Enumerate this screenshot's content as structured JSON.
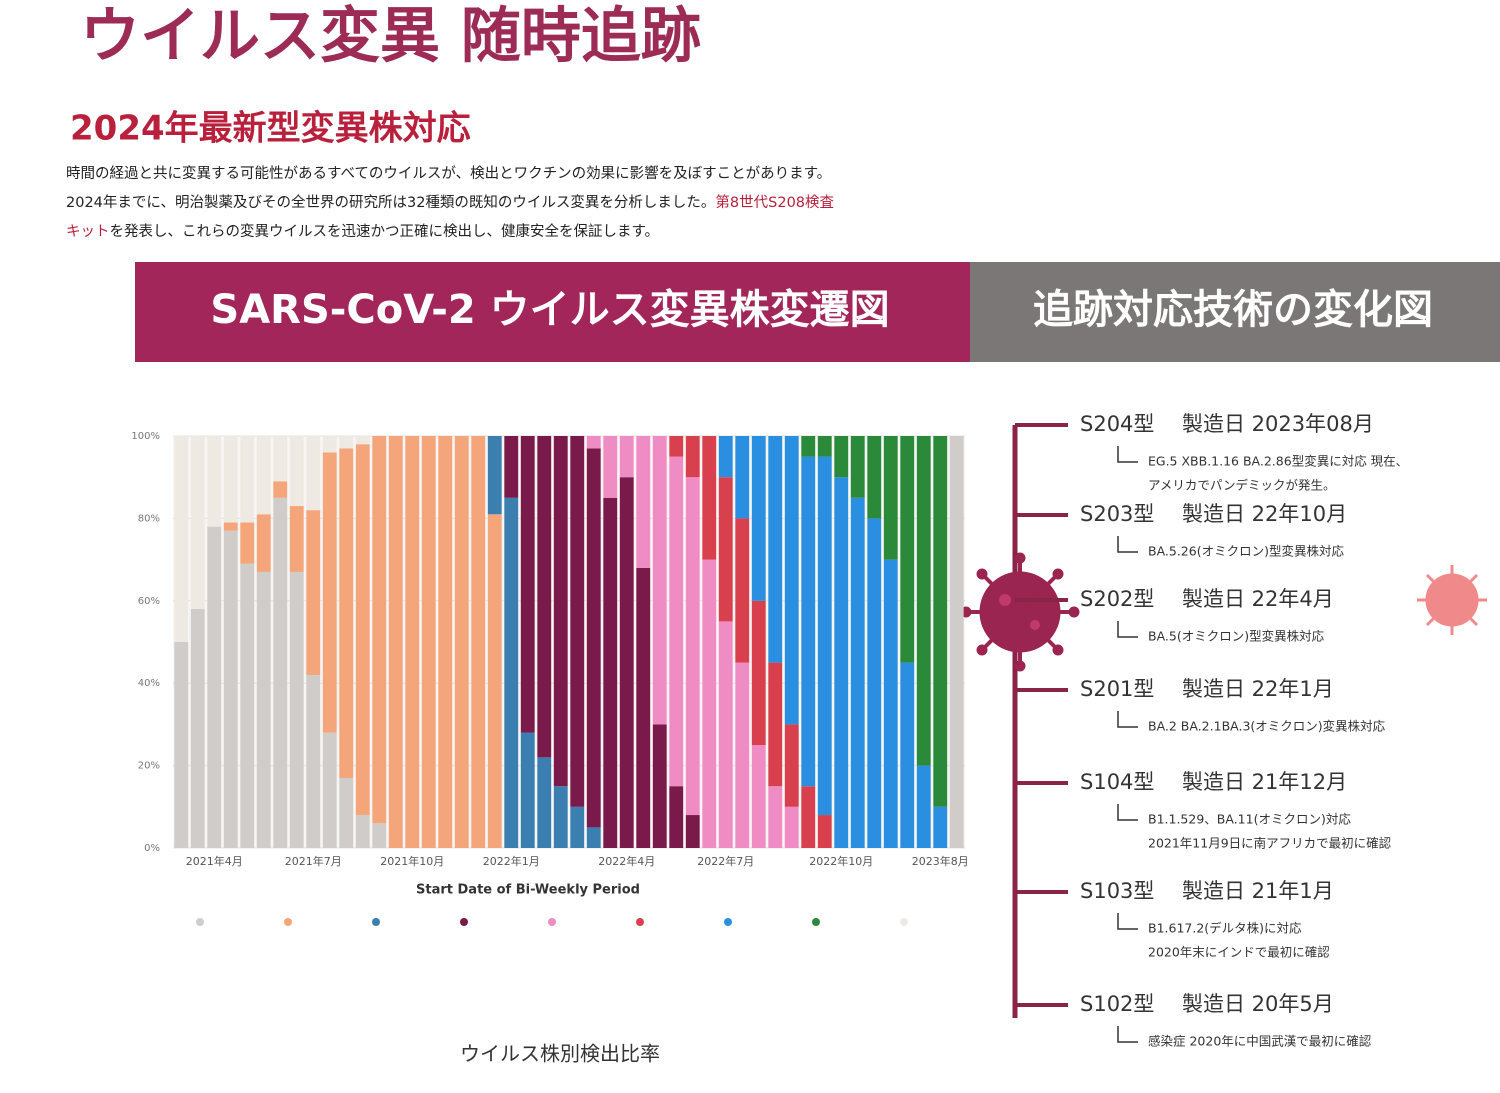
{
  "header": {
    "title": "ウイルス変異 随時追跡",
    "subtitle": "2024年最新型変異株対応",
    "paragraph": [
      [
        {
          "text": "時間の経過と共に変異する可能性があるすべてのウイルスが、検出とワクチンの効果に影響を及ぼすことがあります。",
          "highlight": false
        }
      ],
      [
        {
          "text": "2024年までに、明治製薬及びその全世界の研究所は32種類の既知のウイルス変異を分析しました。",
          "highlight": false
        },
        {
          "text": "第8世代S208検査",
          "highlight": true
        }
      ],
      [
        {
          "text": "キット",
          "highlight": true
        },
        {
          "text": "を発表し、これらの変異ウイルスを迅速かつ正確に検出し、健康安全を保証します。",
          "highlight": false
        }
      ]
    ]
  },
  "banner": {
    "left": "SARS-CoV-2 ウイルス変異株変遷図",
    "right": "追跡対応技術の変化図"
  },
  "chart_data": {
    "type": "bar",
    "stacked": true,
    "x_label": "Start Date of Bi-Weekly Period",
    "caption": "ウイルス株別検出比率",
    "categories": [
      null,
      null,
      "2021年4月",
      null,
      null,
      null,
      null,
      null,
      "2021年7月",
      null,
      null,
      null,
      null,
      null,
      "2021年10月",
      null,
      null,
      null,
      null,
      null,
      "2022年1月",
      null,
      null,
      null,
      null,
      null,
      null,
      "2022年4月",
      null,
      null,
      null,
      null,
      null,
      "2022年7月",
      null,
      null,
      null,
      null,
      null,
      null,
      "2022年10月",
      null,
      null,
      null,
      null,
      null,
      "2023年8月",
      null
    ],
    "ylim": [
      0,
      100
    ],
    "yticks": [
      {
        "value": 0,
        "label": "0%"
      },
      {
        "value": 20,
        "label": "20%"
      },
      {
        "value": 40,
        "label": "40%"
      },
      {
        "value": 60,
        "label": "60%"
      },
      {
        "value": 80,
        "label": "80%"
      },
      {
        "value": 100,
        "label": "100%"
      }
    ],
    "series": [
      {
        "color": "#cfccc9",
        "values": [
          50,
          58,
          78,
          77,
          69,
          67,
          85,
          67,
          42,
          28,
          17,
          8,
          6,
          0,
          0,
          0,
          0,
          0,
          0,
          0,
          0,
          0,
          0,
          0,
          0,
          0,
          0,
          0,
          0,
          0,
          0,
          0,
          0,
          0,
          0,
          0,
          0,
          0,
          0,
          0,
          0,
          0,
          0,
          0,
          0,
          0,
          0,
          100
        ]
      },
      {
        "color": "#f4a57a",
        "values": [
          0,
          0,
          0,
          2,
          10,
          14,
          4,
          16,
          40,
          68,
          80,
          90,
          94,
          100,
          100,
          100,
          100,
          100,
          100,
          81,
          0,
          0,
          0,
          0,
          0,
          0,
          0,
          0,
          0,
          0,
          0,
          0,
          0,
          0,
          0,
          0,
          0,
          0,
          0,
          0,
          0,
          0,
          0,
          0,
          0,
          0,
          0,
          0
        ]
      },
      {
        "color": "#3a7fb0",
        "values": [
          0,
          0,
          0,
          0,
          0,
          0,
          0,
          0,
          0,
          0,
          0,
          0,
          0,
          0,
          0,
          0,
          0,
          0,
          0,
          19,
          85,
          28,
          22,
          15,
          10,
          5,
          0,
          0,
          0,
          0,
          0,
          0,
          0,
          0,
          0,
          0,
          0,
          0,
          0,
          0,
          0,
          0,
          0,
          0,
          0,
          0,
          0,
          0
        ]
      },
      {
        "color": "#7a1a4a",
        "values": [
          0,
          0,
          0,
          0,
          0,
          0,
          0,
          0,
          0,
          0,
          0,
          0,
          0,
          0,
          0,
          0,
          0,
          0,
          0,
          0,
          15,
          72,
          78,
          85,
          90,
          92,
          85,
          90,
          68,
          30,
          15,
          8,
          0,
          0,
          0,
          0,
          0,
          0,
          0,
          0,
          0,
          0,
          0,
          0,
          0,
          0,
          0,
          0
        ]
      },
      {
        "color": "#f08cc4",
        "values": [
          0,
          0,
          0,
          0,
          0,
          0,
          0,
          0,
          0,
          0,
          0,
          0,
          0,
          0,
          0,
          0,
          0,
          0,
          0,
          0,
          0,
          0,
          0,
          0,
          0,
          3,
          15,
          10,
          32,
          70,
          80,
          82,
          70,
          55,
          45,
          25,
          15,
          10,
          0,
          0,
          0,
          0,
          0,
          0,
          0,
          0,
          0,
          0
        ]
      },
      {
        "color": "#d8404e",
        "values": [
          0,
          0,
          0,
          0,
          0,
          0,
          0,
          0,
          0,
          0,
          0,
          0,
          0,
          0,
          0,
          0,
          0,
          0,
          0,
          0,
          0,
          0,
          0,
          0,
          0,
          0,
          0,
          0,
          0,
          0,
          5,
          10,
          30,
          35,
          35,
          35,
          30,
          20,
          15,
          8,
          0,
          0,
          0,
          0,
          0,
          0,
          0,
          0
        ]
      },
      {
        "color": "#2a8fe0",
        "values": [
          0,
          0,
          0,
          0,
          0,
          0,
          0,
          0,
          0,
          0,
          0,
          0,
          0,
          0,
          0,
          0,
          0,
          0,
          0,
          0,
          0,
          0,
          0,
          0,
          0,
          0,
          0,
          0,
          0,
          0,
          0,
          0,
          0,
          10,
          20,
          40,
          55,
          70,
          80,
          87,
          90,
          85,
          80,
          70,
          45,
          20,
          10,
          0
        ]
      },
      {
        "color": "#2a8a3a",
        "values": [
          0,
          0,
          0,
          0,
          0,
          0,
          0,
          0,
          0,
          0,
          0,
          0,
          0,
          0,
          0,
          0,
          0,
          0,
          0,
          0,
          0,
          0,
          0,
          0,
          0,
          0,
          0,
          0,
          0,
          0,
          0,
          0,
          0,
          0,
          0,
          0,
          0,
          0,
          5,
          5,
          10,
          15,
          20,
          30,
          55,
          80,
          90,
          0
        ]
      },
      {
        "color": "#efe9e4",
        "values": [
          50,
          42,
          22,
          21,
          21,
          19,
          11,
          17,
          18,
          4,
          3,
          2,
          0,
          0,
          0,
          0,
          0,
          0,
          0,
          0,
          0,
          0,
          0,
          0,
          0,
          0,
          0,
          0,
          0,
          0,
          0,
          0,
          0,
          0,
          0,
          0,
          0,
          0,
          0,
          0,
          0,
          0,
          0,
          0,
          0,
          0,
          0,
          0
        ]
      }
    ]
  },
  "timeline": [
    {
      "model": "S204型",
      "made": "製造日 2023年08月",
      "notes": [
        "EG.5 XBB.1.16 BA.2.86型変異に対応 現在、",
        "アメリカでパンデミックが発生。"
      ]
    },
    {
      "model": "S203型",
      "made": "製造日 22年10月",
      "notes": [
        "BA.5.26(オミクロン)型変異株対応"
      ]
    },
    {
      "model": "S202型",
      "made": "製造日 22年4月",
      "notes": [
        "BA.5(オミクロン)型変異株対応"
      ]
    },
    {
      "model": "S201型",
      "made": "製造日 22年1月",
      "notes": [
        "BA.2 BA.2.1BA.3(オミクロン)変異株対応"
      ]
    },
    {
      "model": "S104型",
      "made": "製造日 21年12月",
      "notes": [
        "B1.1.529、BA.11(オミクロン)対応",
        "2021年11月9日に南アフリカで最初に確認"
      ]
    },
    {
      "model": "S103型",
      "made": "製造日 21年1月",
      "notes": [
        "B1.617.2(デルタ株)に対応",
        "2020年末にインドで最初に確認"
      ]
    },
    {
      "model": "S102型",
      "made": "製造日 20年5月",
      "notes": [
        "感染症 2020年に中国武漢で最初に確認"
      ]
    }
  ]
}
